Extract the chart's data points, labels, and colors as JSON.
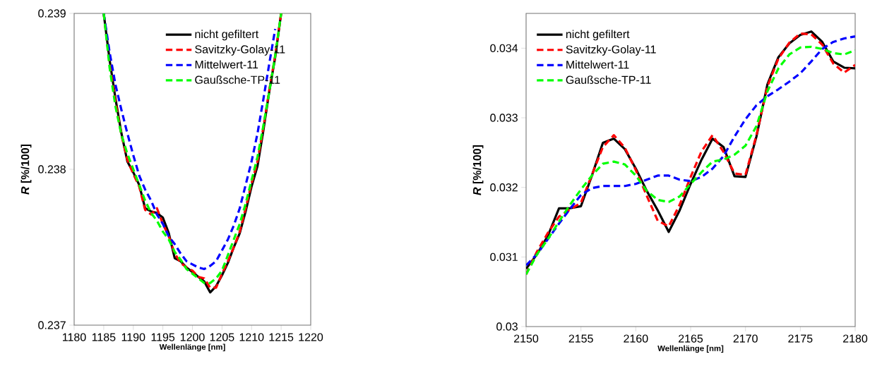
{
  "chart_data": [
    {
      "type": "line",
      "xlabel": "Wellenlänge [nm]",
      "ylabel": "*R* [%/100]",
      "xlim": [
        1180,
        1220
      ],
      "xticks": [
        1180,
        1185,
        1190,
        1195,
        1200,
        1205,
        1210,
        1215,
        1220
      ],
      "ylim": [
        0.237,
        0.239
      ],
      "yticks": [
        0.237,
        0.238,
        0.239
      ],
      "legend": "top",
      "grid": false,
      "x": [
        1185,
        1186,
        1187,
        1188,
        1189,
        1190,
        1191,
        1192,
        1193,
        1194,
        1195,
        1196,
        1197,
        1198,
        1199,
        1200,
        1201,
        1202,
        1203,
        1204,
        1205,
        1206,
        1207,
        1208,
        1209,
        1210,
        1211,
        1212,
        1213,
        1214,
        1215
      ],
      "series": [
        {
          "name": "nicht gefiltert",
          "color": "#000000",
          "line_style": "solid",
          "values": [
            0.239,
            0.2387,
            0.23845,
            0.23823,
            0.23805,
            0.23798,
            0.2379,
            0.23775,
            0.23773,
            0.23772,
            0.23769,
            0.23759,
            0.23743,
            0.23741,
            0.23737,
            0.23734,
            0.23731,
            0.23728,
            0.23721,
            0.23725,
            0.23732,
            0.2374,
            0.2375,
            0.23759,
            0.23773,
            0.23789,
            0.23802,
            0.23825,
            0.2385,
            0.23872,
            0.239
          ]
        },
        {
          "name": "Savitzky-Golay-11",
          "color": "#ff0000",
          "line_style": "dashed",
          "values": [
            0.239,
            0.23868,
            0.23843,
            0.23822,
            0.23806,
            0.23797,
            0.23789,
            0.23774,
            0.23771,
            0.23775,
            0.23765,
            0.23757,
            0.23746,
            0.2374,
            0.23737,
            0.23735,
            0.23731,
            0.2373,
            0.23724,
            0.23724,
            0.23733,
            0.23741,
            0.2375,
            0.2376,
            0.23775,
            0.23791,
            0.23805,
            0.23827,
            0.23851,
            0.23873,
            0.239
          ]
        },
        {
          "name": "Mittelwert-11",
          "color": "#0000ff",
          "line_style": "dashed",
          "values": [
            0.239,
            0.23875,
            0.23854,
            0.23838,
            0.23823,
            0.23809,
            0.23796,
            0.23787,
            0.2378,
            0.23771,
            0.23765,
            0.23757,
            0.23752,
            0.23746,
            0.23741,
            0.23739,
            0.23737,
            0.23736,
            0.23738,
            0.23741,
            0.23748,
            0.23755,
            0.23764,
            0.23775,
            0.2379,
            0.23805,
            0.23823,
            0.23845,
            0.23868,
            0.2389,
            null
          ]
        },
        {
          "name": "Gaußsche-TP-11",
          "color": "#00ff00",
          "line_style": "dashed",
          "values": [
            0.239,
            0.23865,
            0.2384,
            0.23822,
            0.2381,
            0.238,
            0.2379,
            0.2378,
            0.23772,
            0.23767,
            0.2376,
            0.23755,
            0.23747,
            0.23742,
            0.23736,
            0.23733,
            0.2373,
            0.23727,
            0.23727,
            0.2373,
            0.23735,
            0.23745,
            0.23755,
            0.23765,
            0.23778,
            0.23793,
            0.23808,
            0.23828,
            0.2385,
            0.23873,
            0.239
          ]
        }
      ]
    },
    {
      "type": "line",
      "xlabel": "Wellenlänge [nm]",
      "ylabel": "*R* [%/100]",
      "xlim": [
        2150,
        2180
      ],
      "xticks": [
        2150,
        2155,
        2160,
        2165,
        2170,
        2175,
        2180
      ],
      "ylim": [
        0.03,
        0.0345
      ],
      "yticks": [
        0.03,
        0.031,
        0.032,
        0.033,
        0.034
      ],
      "legend": "top left",
      "grid": false,
      "x": [
        2150,
        2151,
        2152,
        2153,
        2154,
        2155,
        2156,
        2157,
        2158,
        2159,
        2160,
        2161,
        2162,
        2163,
        2164,
        2165,
        2166,
        2167,
        2168,
        2169,
        2170,
        2171,
        2172,
        2173,
        2174,
        2175,
        2176,
        2177,
        2178,
        2179,
        2180
      ],
      "series": [
        {
          "name": "nicht gefiltert",
          "color": "#000000",
          "line_style": "solid",
          "values": [
            0.03083,
            0.03104,
            0.03131,
            0.0317,
            0.0317,
            0.03173,
            0.03217,
            0.03264,
            0.0327,
            0.03255,
            0.03227,
            0.03195,
            0.03167,
            0.03136,
            0.03167,
            0.03205,
            0.0324,
            0.0327,
            0.03258,
            0.03216,
            0.03215,
            0.03273,
            0.03348,
            0.03387,
            0.03407,
            0.03419,
            0.03424,
            0.03409,
            0.03381,
            0.03372,
            0.03371
          ]
        },
        {
          "name": "Savitzky-Golay-11",
          "color": "#ff0000",
          "line_style": "dashed",
          "values": [
            0.03075,
            0.03108,
            0.03135,
            0.03158,
            0.03168,
            0.03178,
            0.03218,
            0.03258,
            0.03275,
            0.03257,
            0.03225,
            0.03188,
            0.03152,
            0.03144,
            0.03175,
            0.03215,
            0.03252,
            0.03275,
            0.03251,
            0.0322,
            0.03218,
            0.03275,
            0.03345,
            0.03385,
            0.03408,
            0.03421,
            0.0342,
            0.03405,
            0.03378,
            0.03365,
            0.03376
          ]
        },
        {
          "name": "Mittelwert-11",
          "color": "#0000ff",
          "line_style": "dashed",
          "values": [
            0.03088,
            0.03104,
            0.03126,
            0.03148,
            0.03169,
            0.03189,
            0.03199,
            0.03202,
            0.03202,
            0.03202,
            0.03205,
            0.03211,
            0.03217,
            0.03217,
            0.03211,
            0.03209,
            0.03215,
            0.03227,
            0.03245,
            0.03273,
            0.03298,
            0.03318,
            0.03331,
            0.03341,
            0.03352,
            0.03364,
            0.03381,
            0.03399,
            0.03409,
            0.03414,
            0.03417
          ]
        },
        {
          "name": "Gaußsche-TP-11",
          "color": "#00ff00",
          "line_style": "dashed",
          "values": [
            0.03075,
            0.03104,
            0.03126,
            0.03151,
            0.03175,
            0.03197,
            0.03217,
            0.03234,
            0.03237,
            0.03233,
            0.03217,
            0.03195,
            0.03182,
            0.03179,
            0.03187,
            0.03205,
            0.03222,
            0.03237,
            0.0324,
            0.03247,
            0.0326,
            0.03288,
            0.03338,
            0.03371,
            0.03391,
            0.03401,
            0.03402,
            0.03399,
            0.03393,
            0.03391,
            0.03397
          ]
        }
      ]
    }
  ]
}
